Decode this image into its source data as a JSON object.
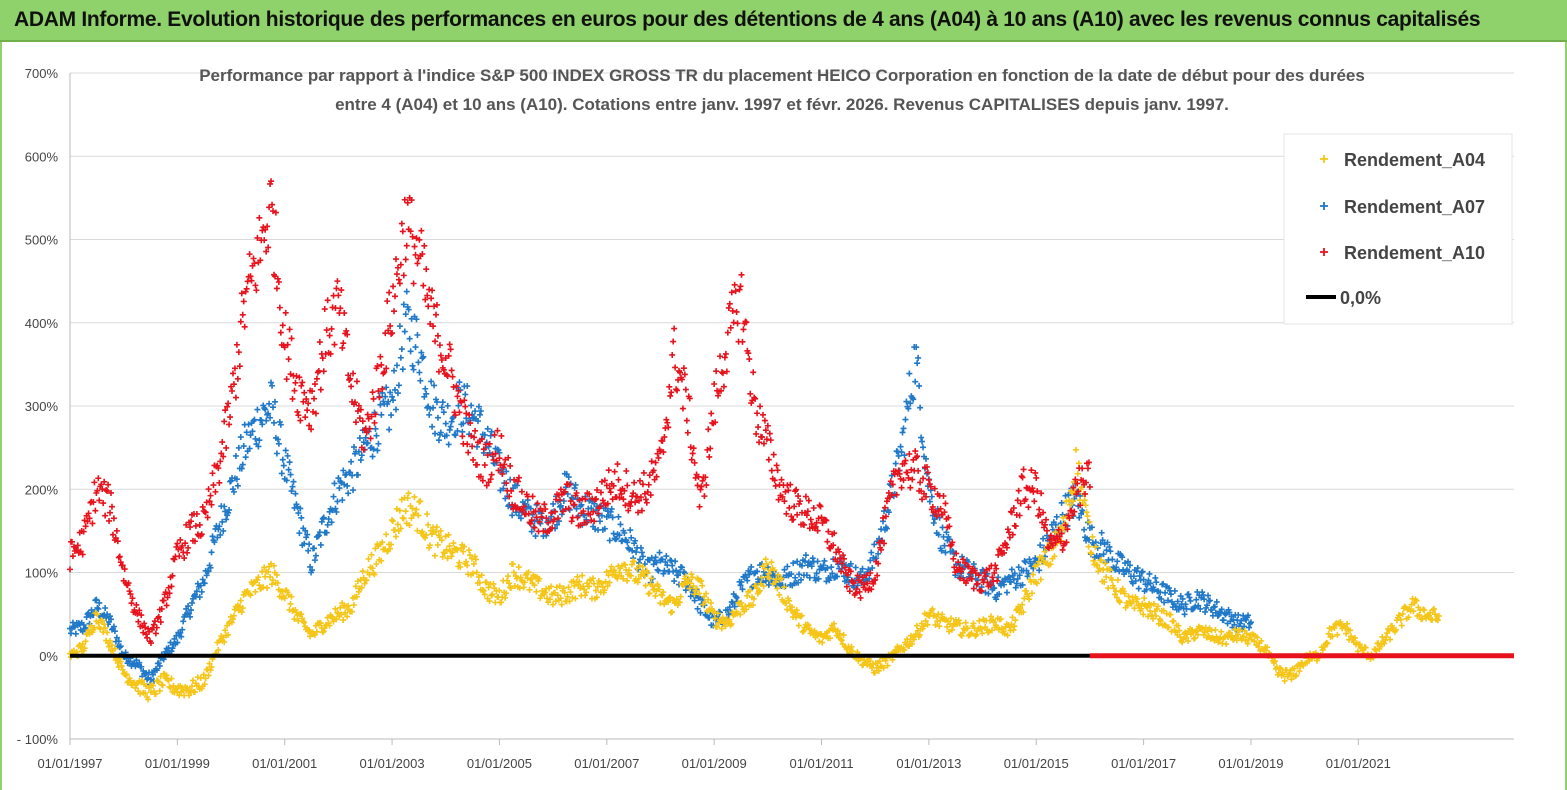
{
  "header": {
    "title": "ADAM Informe. Evolution historique des performances en euros pour des détentions de 4 ans (A04) à 10 ans (A10) avec les revenus connus capitalisés"
  },
  "chart_data": {
    "type": "scatter",
    "title_line1": "Performance par rapport à l'indice S&P 500 INDEX GROSS TR  du placement HEICO Corporation en fonction de la date de début pour des durées",
    "title_line2": "entre 4 (A04) et 10 ans (A10).  Cotations entre janv. 1997 et févr. 2026. Revenus  CAPITALISES depuis janv. 1997.",
    "xlabel": "",
    "ylabel": "",
    "xlim": [
      1997.0,
      2023.9
    ],
    "ylim": [
      -100,
      700
    ],
    "y_ticks": [
      -100,
      0,
      100,
      200,
      300,
      400,
      500,
      600,
      700
    ],
    "y_tick_labels": [
      "- 100%",
      "0%",
      "100%",
      "200%",
      "300%",
      "400%",
      "500%",
      "600%",
      "700%"
    ],
    "x_ticks": [
      1997,
      1999,
      2001,
      2003,
      2005,
      2007,
      2009,
      2011,
      2013,
      2015,
      2017,
      2019,
      2021
    ],
    "x_tick_labels": [
      "01/01/1997",
      "01/01/1999",
      "01/01/2001",
      "01/01/2003",
      "01/01/2005",
      "01/01/2007",
      "01/01/2009",
      "01/01/2011",
      "01/01/2013",
      "01/01/2015",
      "01/01/2017",
      "01/01/2019",
      "01/01/2021"
    ],
    "grid": true,
    "legend_position": "top-right",
    "series": [
      {
        "name": "Rendement_A04",
        "color": "#f5c518",
        "marker": "plus",
        "x": [
          1997.0,
          1997.25,
          1997.5,
          1997.75,
          1998.0,
          1998.25,
          1998.5,
          1998.75,
          1999.0,
          1999.25,
          1999.5,
          1999.75,
          2000.0,
          2000.25,
          2000.5,
          2000.75,
          2001.0,
          2001.25,
          2001.5,
          2001.75,
          2002.0,
          2002.25,
          2002.5,
          2002.75,
          2003.0,
          2003.25,
          2003.5,
          2003.75,
          2004.0,
          2004.25,
          2004.5,
          2004.75,
          2005.0,
          2005.25,
          2005.5,
          2005.75,
          2006.0,
          2006.25,
          2006.5,
          2006.75,
          2007.0,
          2007.25,
          2007.5,
          2007.75,
          2008.0,
          2008.25,
          2008.5,
          2008.75,
          2009.0,
          2009.25,
          2009.5,
          2009.75,
          2010.0,
          2010.25,
          2010.5,
          2010.75,
          2011.0,
          2011.25,
          2011.5,
          2011.75,
          2012.0,
          2012.25,
          2012.5,
          2012.75,
          2013.0,
          2013.25,
          2013.5,
          2013.75,
          2014.0,
          2014.25,
          2014.5,
          2014.75,
          2015.0,
          2015.25,
          2015.5,
          2015.75,
          2016.0,
          2016.25,
          2016.5,
          2016.75,
          2017.0,
          2017.25,
          2017.5,
          2017.75,
          2018.0,
          2018.25,
          2018.5,
          2018.75,
          2019.0,
          2019.25,
          2019.5,
          2019.75,
          2020.0,
          2020.25,
          2020.5,
          2020.75,
          2021.0,
          2021.25,
          2021.5,
          2021.75,
          2022.0,
          2022.25,
          2022.5
        ],
        "y": [
          0,
          10,
          50,
          15,
          -20,
          -35,
          -45,
          -30,
          -40,
          -40,
          -30,
          10,
          40,
          70,
          85,
          100,
          75,
          45,
          25,
          40,
          50,
          60,
          100,
          120,
          150,
          180,
          170,
          140,
          130,
          120,
          110,
          80,
          70,
          100,
          90,
          80,
          70,
          75,
          85,
          80,
          90,
          110,
          100,
          90,
          70,
          60,
          90,
          80,
          45,
          40,
          60,
          70,
          110,
          80,
          50,
          30,
          20,
          35,
          10,
          -5,
          -15,
          -5,
          10,
          25,
          50,
          40,
          35,
          30,
          35,
          40,
          30,
          60,
          100,
          120,
          150,
          230,
          140,
          100,
          80,
          60,
          60,
          50,
          40,
          20,
          30,
          25,
          20,
          25,
          20,
          10,
          -20,
          -25,
          -5,
          0,
          30,
          35,
          10,
          0,
          20,
          40,
          60,
          50,
          45
        ]
      },
      {
        "name": "Rendement_A07",
        "color": "#1f78c8",
        "marker": "plus",
        "x": [
          1997.0,
          1997.25,
          1997.5,
          1997.75,
          1998.0,
          1998.25,
          1998.5,
          1998.75,
          1999.0,
          1999.25,
          1999.5,
          1999.75,
          2000.0,
          2000.25,
          2000.5,
          2000.75,
          2001.0,
          2001.25,
          2001.5,
          2001.75,
          2002.0,
          2002.25,
          2002.5,
          2002.75,
          2003.0,
          2003.25,
          2003.5,
          2003.75,
          2004.0,
          2004.25,
          2004.5,
          2004.75,
          2005.0,
          2005.25,
          2005.5,
          2005.75,
          2006.0,
          2006.25,
          2006.5,
          2006.75,
          2007.0,
          2007.25,
          2007.5,
          2007.75,
          2008.0,
          2008.25,
          2008.5,
          2008.75,
          2009.0,
          2009.25,
          2009.5,
          2009.75,
          2010.0,
          2010.25,
          2010.5,
          2010.75,
          2011.0,
          2011.25,
          2011.5,
          2011.75,
          2012.0,
          2012.25,
          2012.5,
          2012.75,
          2013.0,
          2013.25,
          2013.5,
          2013.75,
          2014.0,
          2014.25,
          2014.5,
          2014.75,
          2015.0,
          2015.25,
          2015.5,
          2015.75,
          2016.0,
          2016.25,
          2016.5,
          2016.75,
          2017.0,
          2017.25,
          2017.5,
          2017.75,
          2018.0,
          2018.25,
          2018.5,
          2018.75,
          2019.0
        ],
        "y": [
          30,
          35,
          60,
          40,
          0,
          -10,
          -30,
          0,
          20,
          60,
          90,
          150,
          200,
          250,
          280,
          300,
          230,
          170,
          110,
          160,
          200,
          220,
          250,
          280,
          300,
          400,
          370,
          300,
          280,
          300,
          290,
          260,
          220,
          190,
          170,
          160,
          170,
          200,
          180,
          170,
          160,
          150,
          130,
          100,
          110,
          100,
          90,
          60,
          40,
          50,
          80,
          100,
          100,
          90,
          100,
          110,
          100,
          110,
          100,
          90,
          120,
          180,
          250,
          360,
          200,
          140,
          110,
          100,
          90,
          80,
          90,
          100,
          110,
          140,
          170,
          190,
          140,
          130,
          110,
          100,
          90,
          80,
          70,
          60,
          70,
          60,
          50,
          40,
          40
        ]
      },
      {
        "name": "Rendement_A10",
        "color": "#e8121c",
        "marker": "plus",
        "x": [
          1997.0,
          1997.25,
          1997.5,
          1997.75,
          1998.0,
          1998.25,
          1998.5,
          1998.75,
          1999.0,
          1999.25,
          1999.5,
          1999.75,
          2000.0,
          2000.25,
          2000.5,
          2000.75,
          2001.0,
          2001.25,
          2001.5,
          2001.75,
          2002.0,
          2002.25,
          2002.5,
          2002.75,
          2003.0,
          2003.25,
          2003.5,
          2003.75,
          2004.0,
          2004.25,
          2004.5,
          2004.75,
          2005.0,
          2005.25,
          2005.5,
          2005.75,
          2006.0,
          2006.25,
          2006.5,
          2006.75,
          2007.0,
          2007.25,
          2007.5,
          2007.75,
          2008.0,
          2008.25,
          2008.5,
          2008.75,
          2009.0,
          2009.25,
          2009.5,
          2009.75,
          2010.0,
          2010.25,
          2010.5,
          2010.75,
          2011.0,
          2011.25,
          2011.5,
          2011.75,
          2012.0,
          2012.25,
          2012.5,
          2012.75,
          2013.0,
          2013.25,
          2013.5,
          2013.75,
          2014.0,
          2014.25,
          2014.5,
          2014.75,
          2015.0,
          2015.25,
          2015.5,
          2015.75,
          2016.0
        ],
        "y": [
          120,
          140,
          200,
          180,
          100,
          50,
          20,
          60,
          120,
          150,
          160,
          220,
          300,
          420,
          480,
          540,
          380,
          320,
          300,
          380,
          420,
          320,
          260,
          330,
          420,
          520,
          480,
          400,
          360,
          300,
          250,
          230,
          250,
          200,
          180,
          160,
          170,
          190,
          170,
          180,
          200,
          210,
          190,
          200,
          230,
          360,
          300,
          180,
          300,
          380,
          430,
          300,
          250,
          200,
          180,
          170,
          160,
          130,
          90,
          80,
          100,
          180,
          230,
          220,
          200,
          180,
          110,
          95,
          90,
          100,
          150,
          200,
          200,
          130,
          140,
          200,
          210
        ]
      },
      {
        "name": "0,0%",
        "color": "#000000",
        "marker": "line",
        "x": [
          1997.0,
          2016.0
        ],
        "y": [
          0,
          0
        ]
      }
    ],
    "zero_marker_series": {
      "color": "#e8121c",
      "x_start": 2016.0,
      "x_end": 2023.9,
      "y": 0
    }
  }
}
